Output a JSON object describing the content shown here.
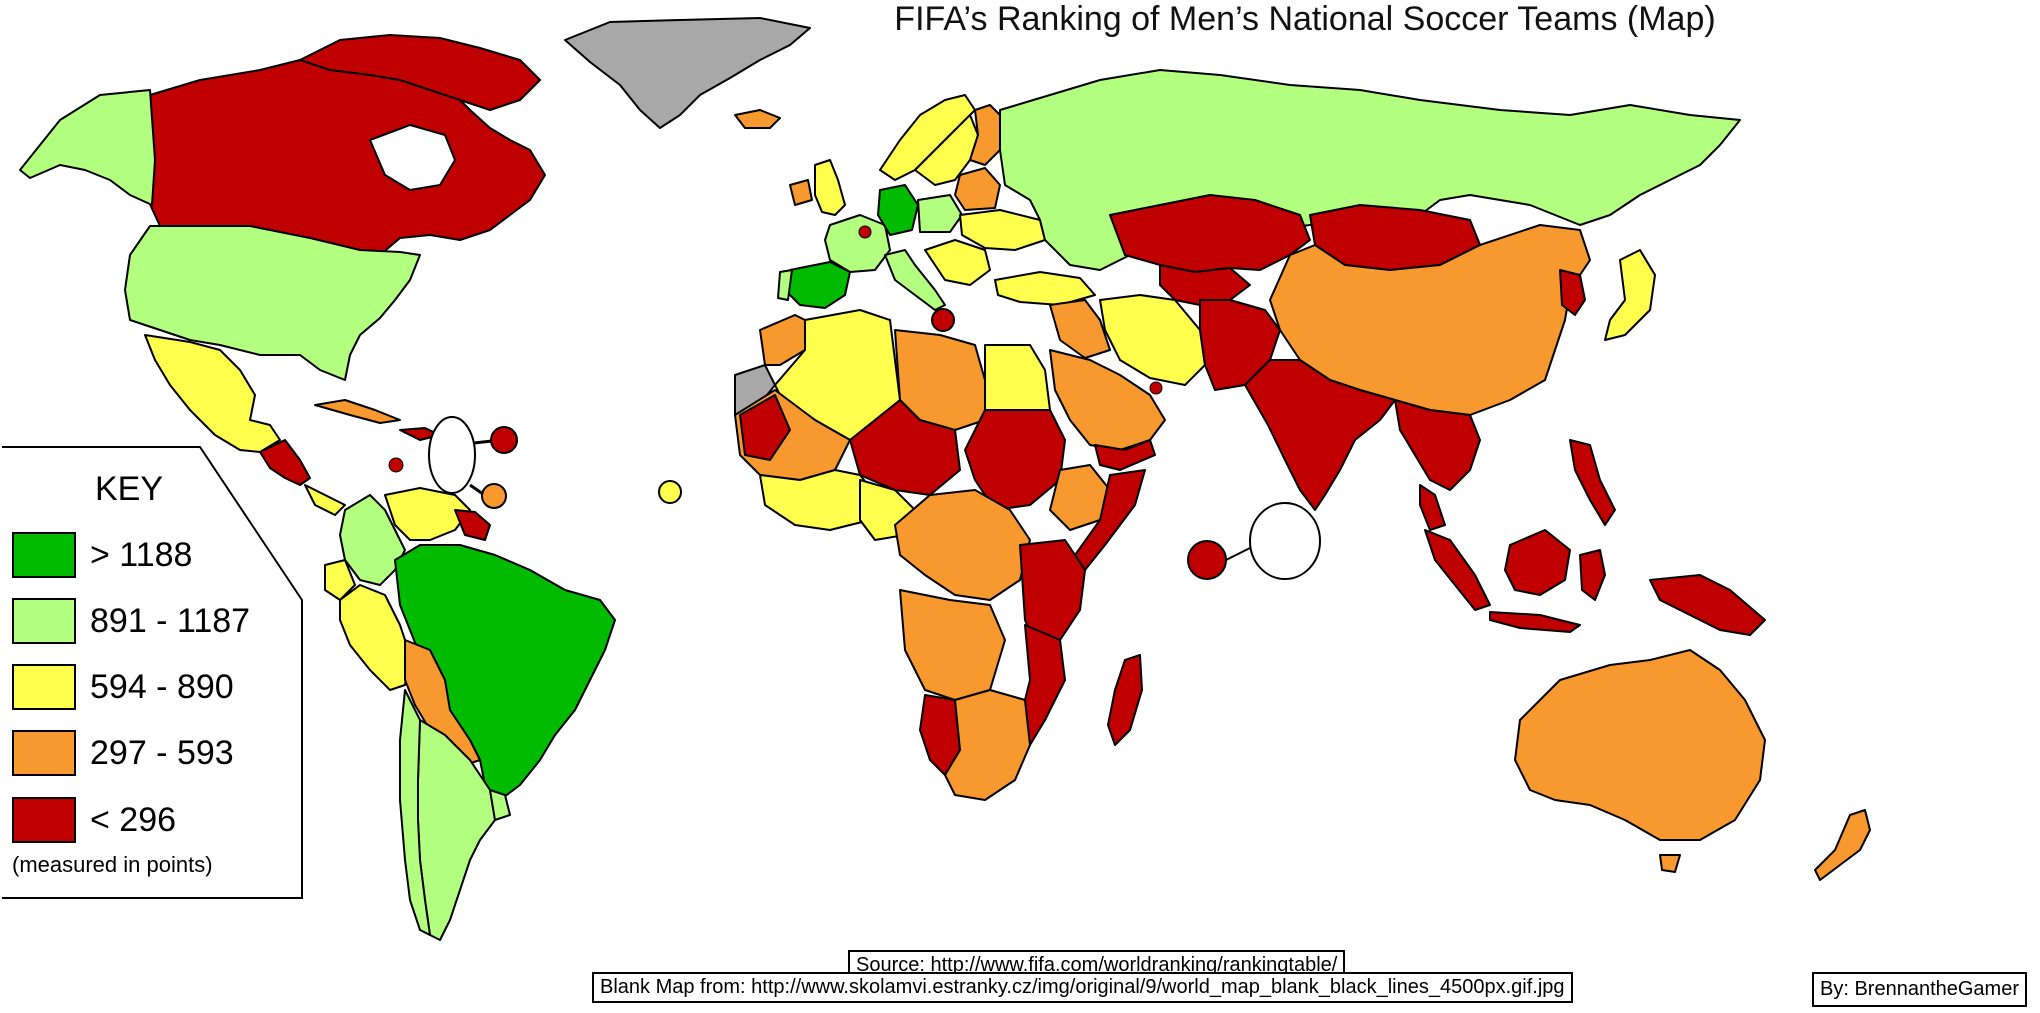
{
  "title": "FIFA’s Ranking of Men’s National Soccer Teams (Map)",
  "legend": {
    "heading": "KEY",
    "note": "(measured in points)",
    "items": [
      {
        "label": "> 1188",
        "color": "#00bb00"
      },
      {
        "label": "891 - 1187",
        "color": "#b3ff80"
      },
      {
        "label": "594 - 890",
        "color": "#ffff4d"
      },
      {
        "label": "297 - 593",
        "color": "#f7992f"
      },
      {
        "label": "< 296",
        "color": "#c00000"
      }
    ],
    "no_data_color": "#a8a8a8"
  },
  "source_text": "Source: http://www.fifa.com/worldranking/rankingtable/",
  "blank_map_text": "Blank Map from: http://www.skolamvi.estranky.cz/img/original/9/world_map_blank_black_lines_4500px.gif.jpg",
  "credit_text": "By: BrennantheGamer"
}
